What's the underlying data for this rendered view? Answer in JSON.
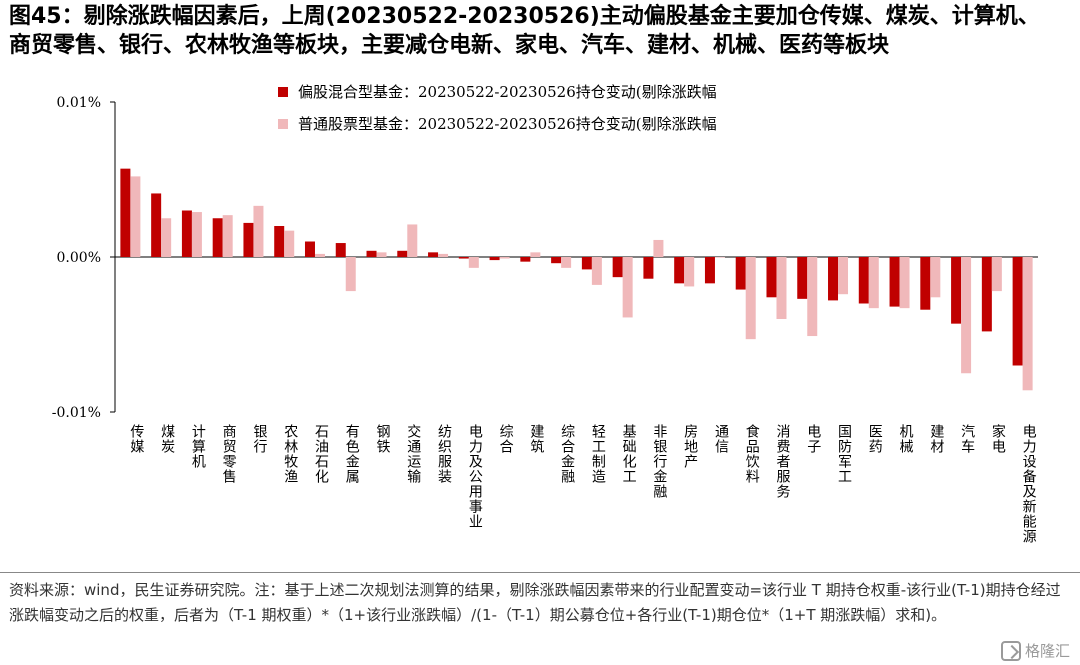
{
  "header": {
    "title_line1": "图45：剔除涨跌幅因素后，上周(20230522-20230526)主动偏股基金主要加仓传媒、煤炭、计算机、",
    "title_line2": "商贸零售、银行、农林牧渔等板块，主要减仓电新、家电、汽车、建材、机械、医药等板块"
  },
  "footer": {
    "note": "资料来源：wind，民生证券研究院。注：基于上述二次规划法测算的结果，剔除涨跌幅因素带来的行业配置变动=该行业 T 期持仓权重-该行业(T-1)期持仓经过涨跌幅变动之后的权重，后者为（T-1 期权重）*（1+该行业涨跌幅）/(1-（T-1）期公募仓位+各行业(T-1)期仓位*（1+T 期涨跌幅）求和)。",
    "watermark": "格隆汇"
  },
  "colors": {
    "series1": "#c00000",
    "series2": "#f0b8ba",
    "axis": "#000000"
  },
  "chart_data": {
    "type": "bar",
    "title": "",
    "xlabel": "",
    "ylabel": "",
    "ylim": [
      -0.01,
      0.01
    ],
    "y_ticks": [
      0.01,
      0.0,
      -0.01
    ],
    "y_tick_labels": [
      "0.01%",
      "0.00%",
      "-0.01%"
    ],
    "grid": false,
    "legend_position": "top-left",
    "categories": [
      "传媒",
      "煤炭",
      "计算机",
      "商贸零售",
      "银行",
      "农林牧渔",
      "石油石化",
      "有色金属",
      "钢铁",
      "交通运输",
      "纺织服装",
      "电力及公用事业",
      "综合",
      "建筑",
      "综合金融",
      "轻工制造",
      "基础化工",
      "非银行金融",
      "房地产",
      "通信",
      "食品饮料",
      "消费者服务",
      "电子",
      "国防军工",
      "医药",
      "机械",
      "建材",
      "汽车",
      "家电",
      "电力设备及新能源"
    ],
    "series": [
      {
        "name": "偏股混合型基金：20230522-20230526持仓变动(剔除涨跌幅",
        "values": [
          0.0057,
          0.0041,
          0.003,
          0.0025,
          0.0022,
          0.002,
          0.001,
          0.0009,
          0.0004,
          0.0004,
          0.0003,
          -0.0001,
          -0.0002,
          -0.0003,
          -0.0004,
          -0.0008,
          -0.0013,
          -0.0014,
          -0.0017,
          -0.0017,
          -0.0021,
          -0.0026,
          -0.0027,
          -0.0028,
          -0.003,
          -0.0032,
          -0.0034,
          -0.0043,
          -0.0048,
          -0.007
        ]
      },
      {
        "name": "普通股票型基金：20230522-20230526持仓变动(剔除涨跌幅",
        "values": [
          0.0052,
          0.0025,
          0.0029,
          0.0027,
          0.0033,
          0.0017,
          0.0002,
          -0.0022,
          0.0003,
          0.0021,
          0.0002,
          -0.0007,
          -0.0001,
          0.0003,
          -0.0007,
          -0.0018,
          -0.0039,
          0.0011,
          -0.0019,
          0.0,
          -0.0053,
          -0.004,
          -0.0051,
          -0.0024,
          -0.0033,
          -0.0033,
          -0.0026,
          -0.0075,
          -0.0022,
          -0.0086
        ]
      }
    ]
  }
}
